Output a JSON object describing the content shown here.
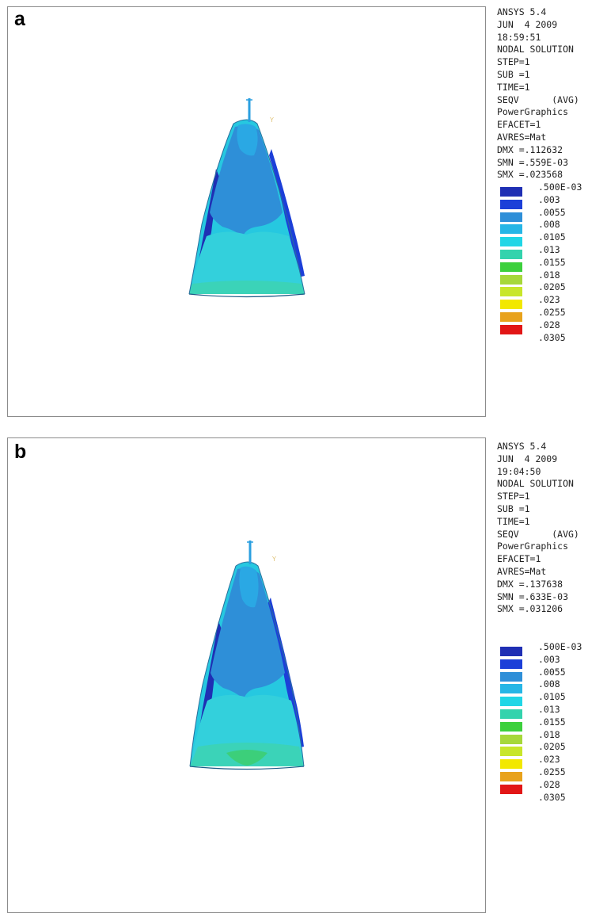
{
  "legend_colors": [
    "#1f2fb4",
    "#1c3fd8",
    "#2e8fd8",
    "#26b6e6",
    "#20d6e6",
    "#33d3ad",
    "#3cd03c",
    "#a6d83a",
    "#c8e62a",
    "#f2e800",
    "#e8a21c",
    "#e21616"
  ],
  "panels": [
    {
      "label": "a",
      "info": [
        "ANSYS 5.4",
        "JUN  4 2009",
        "18:59:51",
        "NODAL SOLUTION",
        "STEP=1",
        "SUB =1",
        "TIME=1",
        "SEQV      (AVG)",
        "PowerGraphics",
        "EFACET=1",
        "AVRES=Mat",
        "DMX =.112632",
        "SMN =.559E-03",
        "SMX =.023568"
      ],
      "legend_values": [
        ".500E-03",
        ".003",
        ".0055",
        ".008",
        ".0105",
        ".013",
        ".0155",
        ".018",
        ".0205",
        ".023",
        ".0255",
        ".028",
        ".0305"
      ]
    },
    {
      "label": "b",
      "info": [
        "ANSYS 5.4",
        "JUN  4 2009",
        "19:04:50",
        "NODAL SOLUTION",
        "STEP=1",
        "SUB =1",
        "TIME=1",
        "SEQV      (AVG)",
        "PowerGraphics",
        "EFACET=1",
        "AVRES=Mat",
        "DMX =.137638",
        "SMN =.633E-03",
        "SMX =.031206"
      ],
      "legend_values": [
        ".500E-03",
        ".003",
        ".0055",
        ".008",
        ".0105",
        ".013",
        ".0155",
        ".018",
        ".0205",
        ".023",
        ".0255",
        ".028",
        ".0305"
      ]
    }
  ]
}
